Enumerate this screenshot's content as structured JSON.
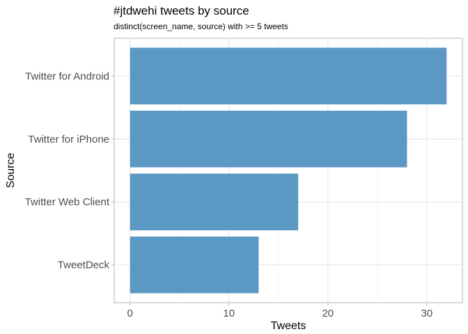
{
  "chart_data": {
    "type": "bar",
    "orientation": "horizontal",
    "title": "#jtdwehi tweets by source",
    "subtitle": "distinct(screen_name, source) with >= 5 tweets",
    "xlabel": "Tweets",
    "ylabel": "Source",
    "categories": [
      "Twitter for Android",
      "Twitter for iPhone",
      "Twitter Web Client",
      "TweetDeck"
    ],
    "values": [
      32,
      28,
      17,
      13
    ],
    "xlim": [
      -1.6,
      33.6
    ],
    "xticks": [
      0,
      10,
      20,
      30
    ],
    "xtick_labels": [
      "0",
      "10",
      "20",
      "30"
    ],
    "bar_color": "#5b98c4",
    "grid": true,
    "legend": "none"
  }
}
